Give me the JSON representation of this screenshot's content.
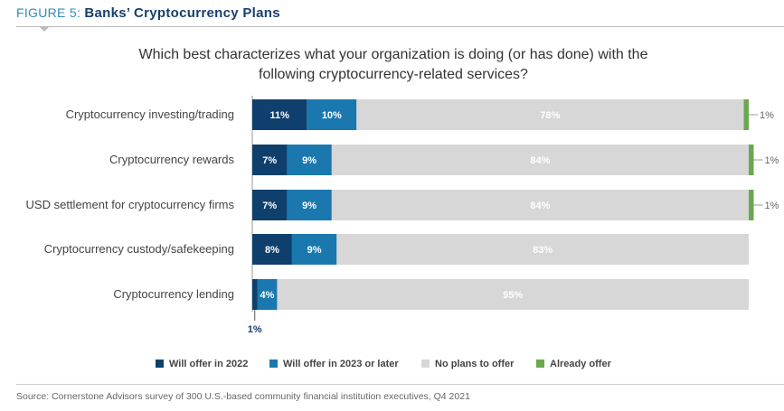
{
  "header": {
    "prefix": "FIGURE 5:",
    "title": "Banks’ Cryptocurrency Plans"
  },
  "chart_data": {
    "type": "bar",
    "orientation": "horizontal",
    "stacked": true,
    "title": "Which best characterizes what your organization is doing (or has done) with the following cryptocurrency-related services?",
    "categories": [
      "Cryptocurrency investing/trading",
      "Cryptocurrency rewards",
      "USD settlement for cryptocurrency firms",
      "Cryptocurrency custody/safekeeping",
      "Cryptocurrency lending"
    ],
    "series": [
      {
        "name": "Will offer in 2022",
        "color": "#0f3f6c",
        "values": [
          11,
          7,
          7,
          8,
          1
        ]
      },
      {
        "name": "Will offer in 2023 or later",
        "color": "#1b78ae",
        "values": [
          10,
          9,
          9,
          9,
          4
        ]
      },
      {
        "name": "No plans to offer",
        "color": "#d7d7d7",
        "values": [
          78,
          84,
          84,
          83,
          95
        ]
      },
      {
        "name": "Already offer",
        "color": "#6aa84f",
        "values": [
          1,
          1,
          1,
          0,
          0
        ]
      }
    ],
    "xlim": [
      0,
      100
    ],
    "legend": "bottom",
    "grid": false
  },
  "source": "Source: Cornerstone Advisors survey of 300 U.S.-based community financial institution executives, Q4 2021"
}
